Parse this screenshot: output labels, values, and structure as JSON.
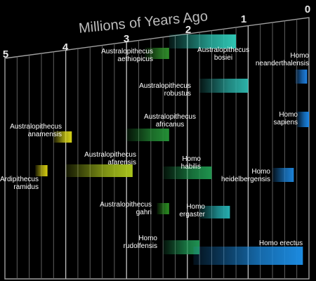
{
  "chart_data": {
    "type": "bar",
    "title": "Millions of Years Ago",
    "xlabel": "",
    "ylabel": "",
    "x_ticks": [
      "5",
      "4",
      "3",
      "2",
      "1",
      "0"
    ],
    "xlim": [
      5,
      0
    ],
    "grid": true,
    "series": [
      {
        "label_lines": [
          "Australopithecus",
          "aethiopicus"
        ],
        "start": 2.7,
        "end": 2.3,
        "color": "#2f8a2a"
      },
      {
        "label_lines": [
          "Australopithecus",
          "bosiei"
        ],
        "start": 2.3,
        "end": 1.2,
        "color": "#2fc6b4"
      },
      {
        "label_lines": [
          "Homo",
          "neanderthalensis"
        ],
        "start": 0.23,
        "end": 0.03,
        "color": "#1e7fe0"
      },
      {
        "label_lines": [
          "Australopithecus",
          "robustus"
        ],
        "start": 1.8,
        "end": 1.0,
        "color": "#2cb2a9"
      },
      {
        "label_lines": [
          "Australopithecus",
          "anamensis"
        ],
        "start": 4.2,
        "end": 3.9,
        "color": "#d7d418"
      },
      {
        "label_lines": [
          "Australopithecus",
          "africanus"
        ],
        "start": 3.0,
        "end": 2.3,
        "color": "#248f36"
      },
      {
        "label_lines": [
          "Homo",
          "sapiens"
        ],
        "start": 0.2,
        "end": 0.0,
        "color": "#1a86e6"
      },
      {
        "label_lines": [
          "Australopithecus",
          "afarensis"
        ],
        "start": 4.0,
        "end": 2.9,
        "color": "#a9c41c"
      },
      {
        "label_lines": [
          "Homo",
          "habilis"
        ],
        "start": 2.4,
        "end": 1.6,
        "color": "#1f944e"
      },
      {
        "label_lines": [
          "Ardipithecus",
          "ramidus"
        ],
        "start": 4.5,
        "end": 4.3,
        "color": "#d4cc12"
      },
      {
        "label_lines": [
          "Homo",
          "heidelbergensis"
        ],
        "start": 0.6,
        "end": 0.25,
        "color": "#1d83d8"
      },
      {
        "label_lines": [
          "Australopithecus",
          "gahri"
        ],
        "start": 2.5,
        "end": 2.3,
        "color": "#2b8d22"
      },
      {
        "label_lines": [
          "Homo",
          "ergaster"
        ],
        "start": 1.8,
        "end": 1.3,
        "color": "#26aeb1"
      },
      {
        "label_lines": [
          "Homo",
          "rudolfensis"
        ],
        "start": 2.4,
        "end": 1.8,
        "color": "#1f9252"
      },
      {
        "label_lines": [
          "Homo erectus"
        ],
        "start": 1.9,
        "end": 0.1,
        "color": "#1c8be0"
      }
    ]
  }
}
